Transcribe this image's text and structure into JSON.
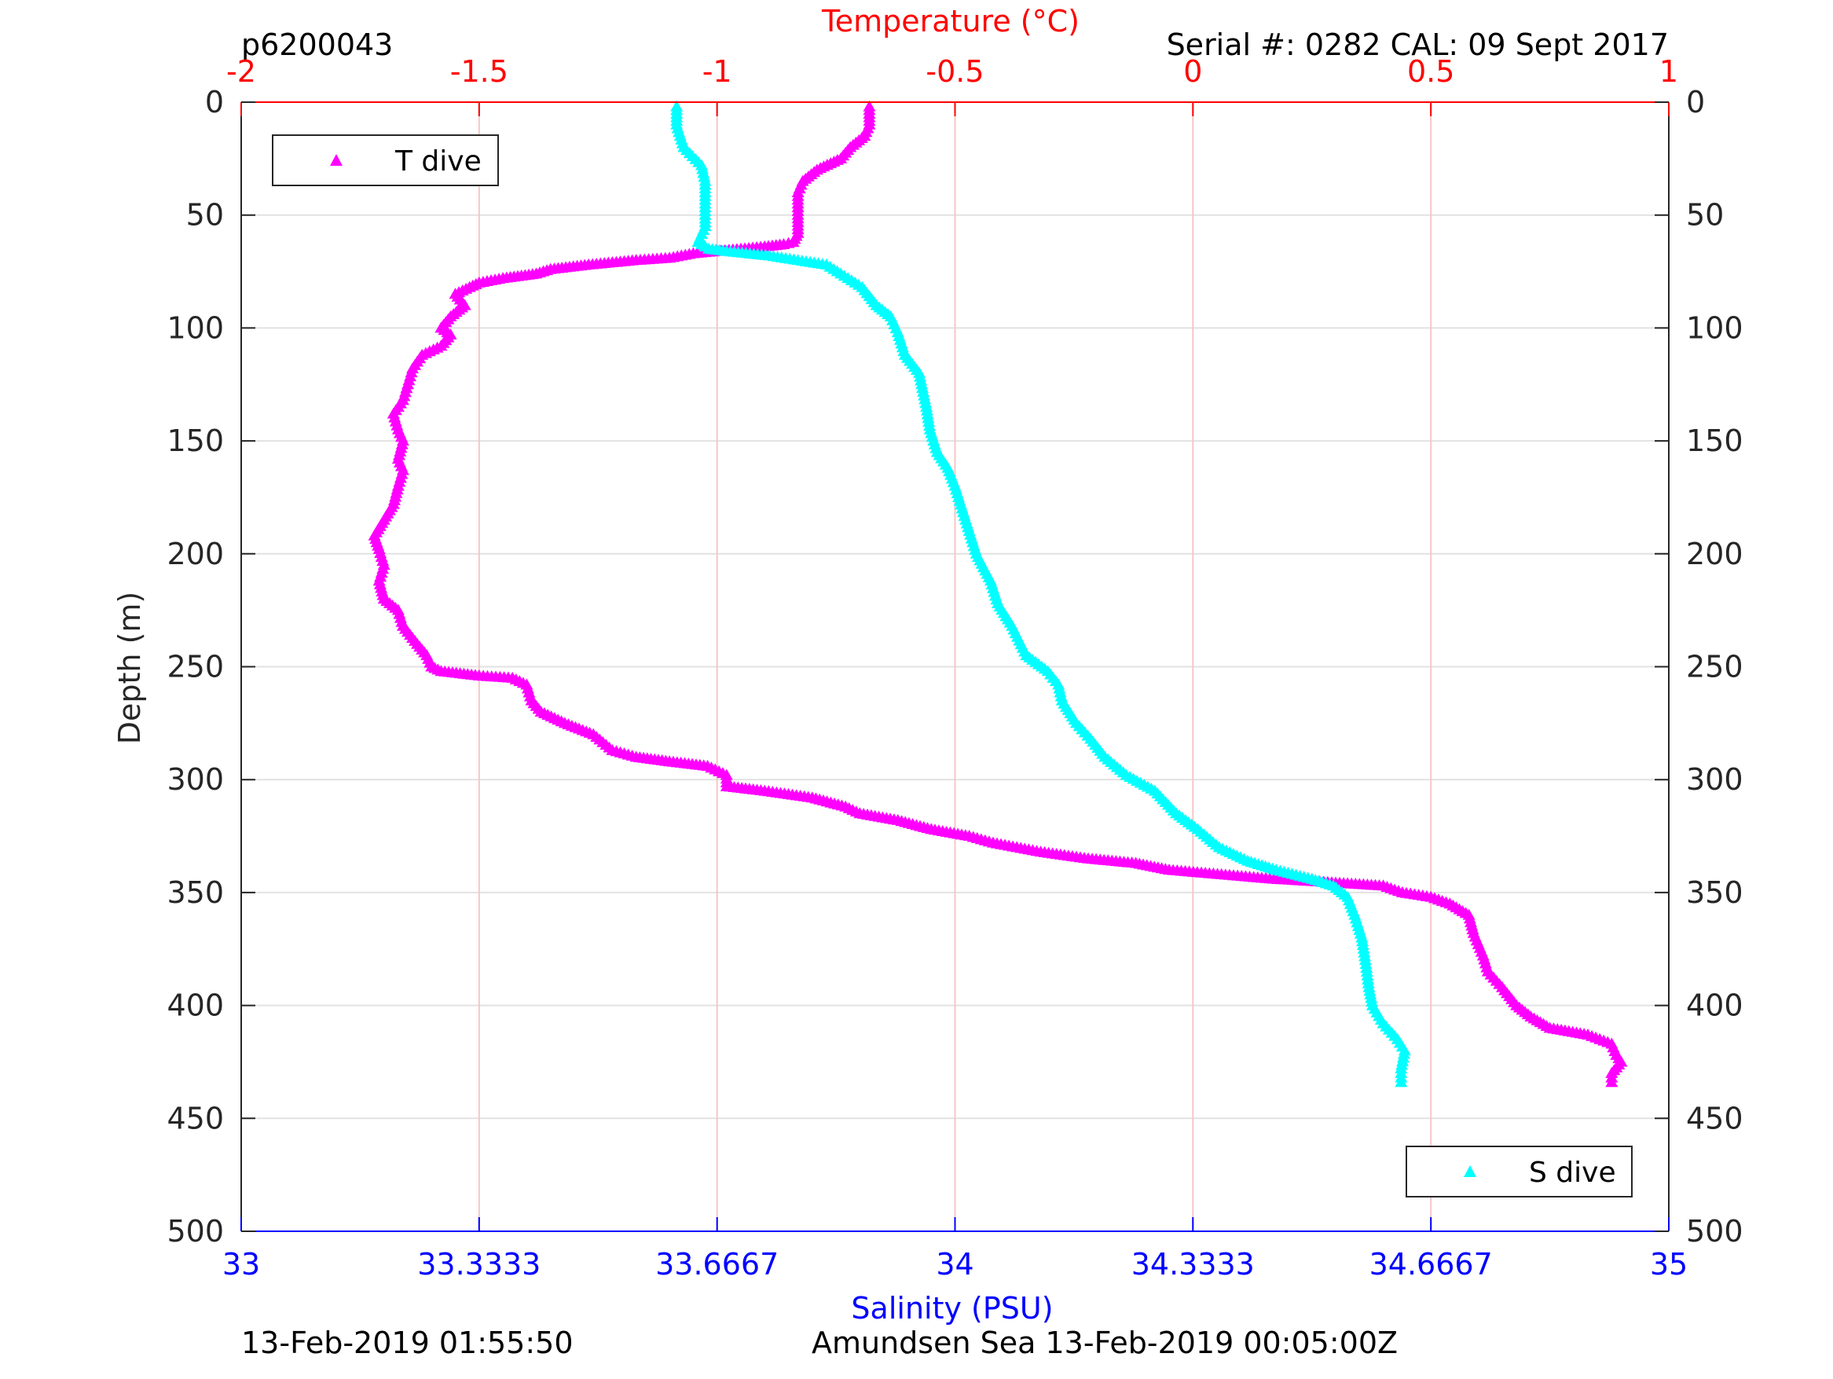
{
  "header": {
    "profile_id": "p6200043",
    "serial": "Serial #: 0282  CAL: 09 Sept 2017"
  },
  "footer": {
    "left_timestamp": "13-Feb-2019 01:55:50",
    "right_caption": "Amundsen Sea 13-Feb-2019 00:05:00Z"
  },
  "colors": {
    "temperature": "#FF00FF",
    "salinity": "#00FFFF",
    "temp_axis": "#FF0000",
    "sal_axis": "#0000FF",
    "grid": "#e2e2e2",
    "temp_grid": "#f6c6c6"
  },
  "chart_data": {
    "type": "scatter",
    "x_top": {
      "label": "Temperature (°C)",
      "range": [
        -2,
        1
      ],
      "ticks": [
        -2,
        -1.5,
        -1,
        -0.5,
        0,
        0.5,
        1
      ],
      "tick_labels": [
        "-2",
        "-1.5",
        "-1",
        "-0.5",
        "0",
        "0.5",
        "1"
      ]
    },
    "x_bottom": {
      "label": "Salinity (PSU)",
      "range": [
        33,
        35
      ],
      "ticks": [
        33,
        33.3333,
        33.6667,
        34,
        34.3333,
        34.6667,
        35
      ],
      "tick_labels": [
        "33",
        "33.3333",
        "33.6667",
        "34",
        "34.3333",
        "34.6667",
        "35"
      ]
    },
    "y": {
      "label": "Depth (m)",
      "range": [
        0,
        500
      ],
      "reversed": true,
      "ticks": [
        0,
        50,
        100,
        150,
        200,
        250,
        300,
        350,
        400,
        450,
        500
      ],
      "tick_labels": [
        "0",
        "50",
        "100",
        "150",
        "200",
        "250",
        "300",
        "350",
        "400",
        "450",
        "500"
      ]
    },
    "grid": true,
    "marker": "triangle",
    "series": [
      {
        "name": "T dive",
        "axis": "top",
        "legend_position": "top-left",
        "points": [
          [
            -0.68,
            2
          ],
          [
            -0.68,
            10
          ],
          [
            -0.69,
            15
          ],
          [
            -0.72,
            20
          ],
          [
            -0.74,
            25
          ],
          [
            -0.79,
            30
          ],
          [
            -0.82,
            35
          ],
          [
            -0.83,
            40
          ],
          [
            -0.83,
            50
          ],
          [
            -0.83,
            58
          ],
          [
            -0.84,
            62
          ],
          [
            -0.86,
            63
          ],
          [
            -0.9,
            64
          ],
          [
            -0.95,
            65
          ],
          [
            -1.0,
            66
          ],
          [
            -1.05,
            67
          ],
          [
            -1.1,
            69
          ],
          [
            -1.17,
            70
          ],
          [
            -1.22,
            71
          ],
          [
            -1.27,
            72
          ],
          [
            -1.35,
            74
          ],
          [
            -1.38,
            76
          ],
          [
            -1.45,
            78
          ],
          [
            -1.5,
            80
          ],
          [
            -1.52,
            82
          ],
          [
            -1.55,
            85
          ],
          [
            -1.53,
            90
          ],
          [
            -1.56,
            95
          ],
          [
            -1.58,
            100
          ],
          [
            -1.56,
            103
          ],
          [
            -1.58,
            108
          ],
          [
            -1.62,
            112
          ],
          [
            -1.64,
            118
          ],
          [
            -1.65,
            125
          ],
          [
            -1.66,
            132
          ],
          [
            -1.68,
            138
          ],
          [
            -1.67,
            145
          ],
          [
            -1.66,
            150
          ],
          [
            -1.67,
            158
          ],
          [
            -1.66,
            163
          ],
          [
            -1.67,
            170
          ],
          [
            -1.68,
            178
          ],
          [
            -1.7,
            185
          ],
          [
            -1.72,
            192
          ],
          [
            -1.71,
            198
          ],
          [
            -1.7,
            205
          ],
          [
            -1.71,
            212
          ],
          [
            -1.7,
            220
          ],
          [
            -1.67,
            225
          ],
          [
            -1.66,
            232
          ],
          [
            -1.63,
            240
          ],
          [
            -1.61,
            245
          ],
          [
            -1.6,
            250
          ],
          [
            -1.58,
            252
          ],
          [
            -1.5,
            254
          ],
          [
            -1.43,
            255
          ],
          [
            -1.4,
            258
          ],
          [
            -1.39,
            265
          ],
          [
            -1.37,
            270
          ],
          [
            -1.32,
            275
          ],
          [
            -1.26,
            280
          ],
          [
            -1.22,
            287
          ],
          [
            -1.17,
            290
          ],
          [
            -1.1,
            292
          ],
          [
            -1.02,
            294
          ],
          [
            -0.98,
            298
          ],
          [
            -0.98,
            303
          ],
          [
            -0.9,
            305
          ],
          [
            -0.8,
            308
          ],
          [
            -0.73,
            312
          ],
          [
            -0.7,
            315
          ],
          [
            -0.62,
            318
          ],
          [
            -0.55,
            322
          ],
          [
            -0.47,
            325
          ],
          [
            -0.42,
            328
          ],
          [
            -0.32,
            332
          ],
          [
            -0.22,
            335
          ],
          [
            -0.12,
            337
          ],
          [
            -0.05,
            340
          ],
          [
            0.06,
            342
          ],
          [
            0.17,
            344
          ],
          [
            0.25,
            345
          ],
          [
            0.4,
            347
          ],
          [
            0.44,
            350
          ],
          [
            0.5,
            352
          ],
          [
            0.54,
            355
          ],
          [
            0.58,
            360
          ],
          [
            0.59,
            368
          ],
          [
            0.61,
            378
          ],
          [
            0.62,
            385
          ],
          [
            0.65,
            392
          ],
          [
            0.68,
            400
          ],
          [
            0.71,
            405
          ],
          [
            0.75,
            410
          ],
          [
            0.83,
            413
          ],
          [
            0.88,
            417
          ],
          [
            0.89,
            422
          ],
          [
            0.9,
            425
          ],
          [
            0.88,
            430
          ],
          [
            0.88,
            434
          ]
        ]
      },
      {
        "name": "S dive",
        "axis": "bottom",
        "legend_position": "bottom-right",
        "points": [
          [
            33.61,
            2
          ],
          [
            33.61,
            10
          ],
          [
            33.62,
            20
          ],
          [
            33.645,
            28
          ],
          [
            33.65,
            35
          ],
          [
            33.65,
            45
          ],
          [
            33.65,
            55
          ],
          [
            33.64,
            62
          ],
          [
            33.655,
            65
          ],
          [
            33.68,
            66
          ],
          [
            33.74,
            68
          ],
          [
            33.78,
            70
          ],
          [
            33.82,
            72
          ],
          [
            33.84,
            76
          ],
          [
            33.87,
            82
          ],
          [
            33.89,
            90
          ],
          [
            33.91,
            95
          ],
          [
            33.92,
            102
          ],
          [
            33.93,
            112
          ],
          [
            33.95,
            120
          ],
          [
            33.96,
            135
          ],
          [
            33.965,
            145
          ],
          [
            33.975,
            155
          ],
          [
            33.99,
            162
          ],
          [
            34.0,
            170
          ],
          [
            34.01,
            180
          ],
          [
            34.02,
            190
          ],
          [
            34.03,
            200
          ],
          [
            34.05,
            212
          ],
          [
            34.06,
            222
          ],
          [
            34.08,
            232
          ],
          [
            34.1,
            245
          ],
          [
            34.13,
            252
          ],
          [
            34.145,
            258
          ],
          [
            34.15,
            265
          ],
          [
            34.17,
            275
          ],
          [
            34.19,
            282
          ],
          [
            34.21,
            290
          ],
          [
            34.24,
            298
          ],
          [
            34.28,
            305
          ],
          [
            34.31,
            315
          ],
          [
            34.34,
            322
          ],
          [
            34.37,
            330
          ],
          [
            34.41,
            336
          ],
          [
            34.45,
            340
          ],
          [
            34.5,
            344
          ],
          [
            34.53,
            347
          ],
          [
            34.55,
            352
          ],
          [
            34.56,
            360
          ],
          [
            34.57,
            370
          ],
          [
            34.575,
            380
          ],
          [
            34.58,
            392
          ],
          [
            34.585,
            400
          ],
          [
            34.6,
            408
          ],
          [
            34.62,
            415
          ],
          [
            34.63,
            420
          ],
          [
            34.625,
            428
          ],
          [
            34.625,
            434
          ]
        ]
      }
    ]
  }
}
